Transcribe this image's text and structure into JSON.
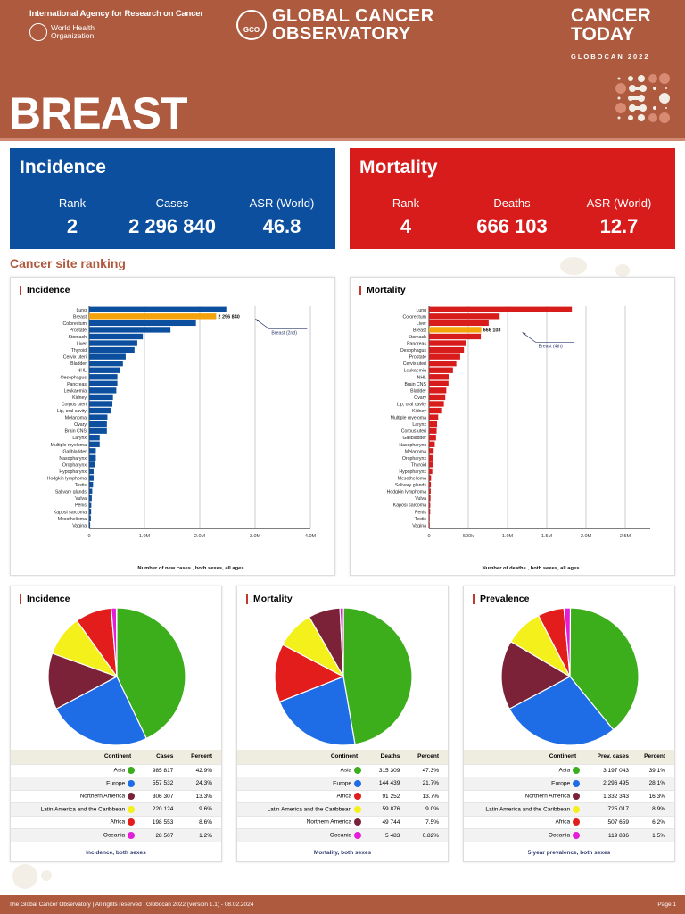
{
  "header": {
    "iarc": "International Agency for Research on Cancer",
    "who_line1": "World Health",
    "who_line2": "Organization",
    "gco_logo": "GCO",
    "gco_line1": "GLOBAL CANCER",
    "gco_line2": "OBSERVATORY",
    "ct_line1": "CANCER",
    "ct_line2": "TODAY",
    "ct_sub": "GLOBOCAN 2022",
    "title": "BREAST"
  },
  "incidence": {
    "title": "Incidence",
    "rank_label": "Rank",
    "rank": "2",
    "cases_label": "Cases",
    "cases": "2 296 840",
    "asr_label": "ASR (World)",
    "asr": "46.8",
    "color": "#0b4f9e"
  },
  "mortality": {
    "title": "Mortality",
    "rank_label": "Rank",
    "rank": "4",
    "deaths_label": "Deaths",
    "deaths": "666 103",
    "asr_label": "ASR (World)",
    "asr": "12.7",
    "color": "#d81c1c"
  },
  "section_title": "Cancer site ranking",
  "chart_data": [
    {
      "type": "bar",
      "orientation": "horizontal",
      "title": "Incidence",
      "xlabel": "Number of new cases , both sexes, all ages",
      "xlim": [
        0,
        4000000
      ],
      "xticks": [
        "0",
        "1.0M",
        "2.0M",
        "3.0M",
        "4.0M"
      ],
      "xtick_values": [
        0,
        1000000,
        2000000,
        3000000,
        4000000
      ],
      "bar_color": "#0b4f9e",
      "highlight_color": "#f5a30a",
      "highlight": "Breast",
      "highlight_label": "2 296 840",
      "annotation": "Breast (2nd)",
      "categories": [
        "Lung",
        "Breast",
        "Colorectum",
        "Prostate",
        "Stomach",
        "Liver",
        "Thyroid",
        "Cervix uteri",
        "Bladder",
        "NHL",
        "Oesophagus",
        "Pancreas",
        "Leukaemia",
        "Kidney",
        "Corpus uteri",
        "Lip, oral cavity",
        "Melanoma",
        "Ovary",
        "Brain CNS",
        "Larynx",
        "Multiple myeloma",
        "Gallbladder",
        "Nasopharynx",
        "Oropharynx",
        "Hypopharynx",
        "Hodgkin lymphoma",
        "Testis",
        "Salivary glands",
        "Vulva",
        "Penis",
        "Kaposi sarcoma",
        "Mesothelioma",
        "Vagina"
      ],
      "values": [
        2480000,
        2296840,
        1930000,
        1470000,
        970000,
        870000,
        820000,
        660000,
        610000,
        550000,
        510000,
        510000,
        490000,
        430000,
        420000,
        390000,
        330000,
        320000,
        320000,
        190000,
        190000,
        120000,
        120000,
        110000,
        80000,
        80000,
        70000,
        55000,
        47000,
        38000,
        35000,
        31000,
        18000
      ]
    },
    {
      "type": "bar",
      "orientation": "horizontal",
      "title": "Mortality",
      "xlabel": "Number of deaths , both sexes, all ages",
      "xlim": [
        0,
        2800000
      ],
      "xticks": [
        "0",
        "500k",
        "1.0M",
        "1.5M",
        "2.0M",
        "2.5M"
      ],
      "xtick_values": [
        0,
        500000,
        1000000,
        1500000,
        2000000,
        2500000
      ],
      "bar_color": "#d81c1c",
      "highlight_color": "#f5a30a",
      "highlight": "Breast",
      "highlight_label": "666 103",
      "annotation": "Breast (4th)",
      "categories": [
        "Lung",
        "Colorectum",
        "Liver",
        "Breast",
        "Stomach",
        "Pancreas",
        "Oesophagus",
        "Prostate",
        "Cervix uteri",
        "Leukaemia",
        "NHL",
        "Brain CNS",
        "Bladder",
        "Ovary",
        "Lip, oral cavity",
        "Kidney",
        "Multiple myeloma",
        "Larynx",
        "Corpus uteri",
        "Gallbladder",
        "Nasopharynx",
        "Melanoma",
        "Oropharynx",
        "Thyroid",
        "Hypopharynx",
        "Mesothelioma",
        "Salivary glands",
        "Hodgkin lymphoma",
        "Vulva",
        "Kaposi sarcoma",
        "Penis",
        "Testis",
        "Vagina"
      ],
      "values": [
        1820000,
        900000,
        760000,
        666103,
        660000,
        467000,
        445000,
        397000,
        348000,
        305000,
        250000,
        248000,
        220000,
        207000,
        189000,
        155000,
        117000,
        103000,
        97000,
        89000,
        73000,
        59000,
        56000,
        47000,
        42000,
        26000,
        24000,
        22000,
        19000,
        16000,
        15000,
        7000,
        8000
      ]
    },
    {
      "type": "pie",
      "title": "Incidence",
      "caption": "Incidence, both sexes",
      "headers": [
        "Continent",
        "Cases",
        "Percent"
      ],
      "rows": [
        {
          "label": "Asia",
          "value": "985 817",
          "percent": "42.9%",
          "pct": 42.9,
          "color": "#3cae1c"
        },
        {
          "label": "Europe",
          "value": "557 532",
          "percent": "24.3%",
          "pct": 24.3,
          "color": "#1f6de6"
        },
        {
          "label": "Northern America",
          "value": "306 307",
          "percent": "13.3%",
          "pct": 13.3,
          "color": "#7b2238"
        },
        {
          "label": "Latin America and the Caribbean",
          "value": "220 124",
          "percent": "9.6%",
          "pct": 9.6,
          "color": "#f3f01c"
        },
        {
          "label": "Africa",
          "value": "198 553",
          "percent": "8.6%",
          "pct": 8.6,
          "color": "#e31c1c"
        },
        {
          "label": "Oceania",
          "value": "28 507",
          "percent": "1.2%",
          "pct": 1.2,
          "color": "#e41ed8"
        }
      ]
    },
    {
      "type": "pie",
      "title": "Mortality",
      "caption": "Mortality, both sexes",
      "headers": [
        "Continent",
        "Deaths",
        "Percent"
      ],
      "rows": [
        {
          "label": "Asia",
          "value": "315 309",
          "percent": "47.3%",
          "pct": 47.3,
          "color": "#3cae1c"
        },
        {
          "label": "Europe",
          "value": "144 439",
          "percent": "21.7%",
          "pct": 21.7,
          "color": "#1f6de6"
        },
        {
          "label": "Africa",
          "value": "91 252",
          "percent": "13.7%",
          "pct": 13.7,
          "color": "#e31c1c"
        },
        {
          "label": "Latin America and the Caribbean",
          "value": "59 876",
          "percent": "9.0%",
          "pct": 9.0,
          "color": "#f3f01c"
        },
        {
          "label": "Northern America",
          "value": "49 744",
          "percent": "7.5%",
          "pct": 7.5,
          "color": "#7b2238"
        },
        {
          "label": "Oceania",
          "value": "5 483",
          "percent": "0.82%",
          "pct": 0.82,
          "color": "#e41ed8"
        }
      ]
    },
    {
      "type": "pie",
      "title": "Prevalence",
      "caption": "5-year prevalence, both sexes",
      "headers": [
        "Continent",
        "Prev. cases",
        "Percent"
      ],
      "rows": [
        {
          "label": "Asia",
          "value": "3 197 043",
          "percent": "39.1%",
          "pct": 39.1,
          "color": "#3cae1c"
        },
        {
          "label": "Europe",
          "value": "2 296 495",
          "percent": "28.1%",
          "pct": 28.1,
          "color": "#1f6de6"
        },
        {
          "label": "Northern America",
          "value": "1 332 343",
          "percent": "16.3%",
          "pct": 16.3,
          "color": "#7b2238"
        },
        {
          "label": "Latin America and the Caribbean",
          "value": "725 017",
          "percent": "8.9%",
          "pct": 8.9,
          "color": "#f3f01c"
        },
        {
          "label": "Africa",
          "value": "507 659",
          "percent": "6.2%",
          "pct": 6.2,
          "color": "#e31c1c"
        },
        {
          "label": "Oceania",
          "value": "119 836",
          "percent": "1.5%",
          "pct": 1.5,
          "color": "#e41ed8"
        }
      ]
    }
  ],
  "footer": {
    "text": "The Global Cancer Observatory | All rights reserved | Globocan 2022 (version 1.1) - 08.02.2024",
    "page": "Page 1"
  }
}
